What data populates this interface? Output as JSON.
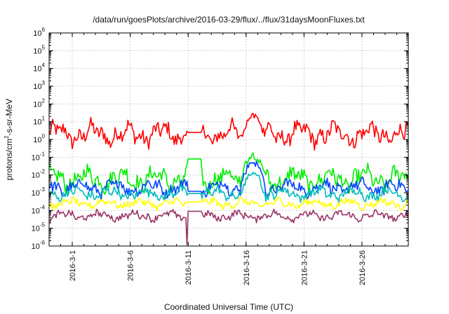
{
  "chart_data": {
    "type": "line",
    "title": "/data/run/goesPlots/archive/2016-03-29/flux/../flux/31daysMoonFluxes.txt",
    "xlabel": "Coordinated Universal Time (UTC)",
    "ylabel_parts": [
      "protons/cm",
      "2",
      "-s-sr-MeV"
    ],
    "y_scale": "log",
    "ylim": [
      1e-06,
      1000000.0
    ],
    "y_ticks": [
      {
        "base": "10",
        "exp": "-6",
        "value": 1e-06
      },
      {
        "base": "10",
        "exp": "-5",
        "value": 1e-05
      },
      {
        "base": "10",
        "exp": "-4",
        "value": 0.0001
      },
      {
        "base": "10",
        "exp": "-3",
        "value": 0.001
      },
      {
        "base": "10",
        "exp": "-2",
        "value": 0.01
      },
      {
        "base": "10",
        "exp": "-1",
        "value": 0.1
      },
      {
        "base": "10",
        "exp": "0",
        "value": 1
      },
      {
        "base": "10",
        "exp": "1",
        "value": 10
      },
      {
        "base": "10",
        "exp": "2",
        "value": 100
      },
      {
        "base": "10",
        "exp": "3",
        "value": 1000
      },
      {
        "base": "10",
        "exp": "4",
        "value": 10000
      },
      {
        "base": "10",
        "exp": "5",
        "value": 100000
      },
      {
        "base": "10",
        "exp": "6",
        "value": 1000000
      }
    ],
    "x_range": [
      "2016-02-28",
      "2016-03-30"
    ],
    "x_ticks": [
      "2016-3-1",
      "2016-3-6",
      "2016-3-11",
      "2016-3-16",
      "2016-3-21",
      "2016-3-26"
    ],
    "grid": true,
    "legend": "none",
    "series": [
      {
        "color": "#ff0000",
        "level_typical": 2.0,
        "spread_decades": 0.7,
        "gap": [
          "2016-03-11",
          "2016-03-12"
        ],
        "gap_level": 2.5,
        "peak": {
          "date": "2016-03-16",
          "value": 30
        }
      },
      {
        "color": "#00ee00",
        "level_typical": 0.006,
        "spread_decades": 0.7,
        "gap": [
          "2016-03-11",
          "2016-03-12"
        ],
        "gap_level": 0.08,
        "peak": {
          "date": "2016-03-16",
          "value": 0.2
        }
      },
      {
        "color": "#0044ff",
        "level_typical": 0.002,
        "spread_decades": 0.5,
        "gap": [
          "2016-03-11",
          "2016-03-12"
        ],
        "gap_level": 0.0012,
        "peak": {
          "date": "2016-03-16",
          "value": 0.08
        }
      },
      {
        "color": "#00bcbc",
        "level_typical": 0.0009,
        "spread_decades": 0.4,
        "gap": [
          "2016-03-11",
          "2016-03-12"
        ],
        "gap_level": 0.0009,
        "peak": {
          "date": "2016-03-16",
          "value": 0.02
        }
      },
      {
        "color": "#ffff00",
        "level_typical": 0.00025,
        "spread_decades": 0.3,
        "gap": [
          "2016-03-11",
          "2016-03-12"
        ],
        "gap_level": 0.0003
      },
      {
        "color": "#993366",
        "level_typical": 5e-05,
        "spread_decades": 0.3,
        "gap": [
          "2016-03-11",
          "2016-03-12"
        ],
        "gap_level": 9e-05,
        "dip": {
          "date": "2016-03-10.9",
          "value": 1.2e-06
        }
      }
    ]
  }
}
